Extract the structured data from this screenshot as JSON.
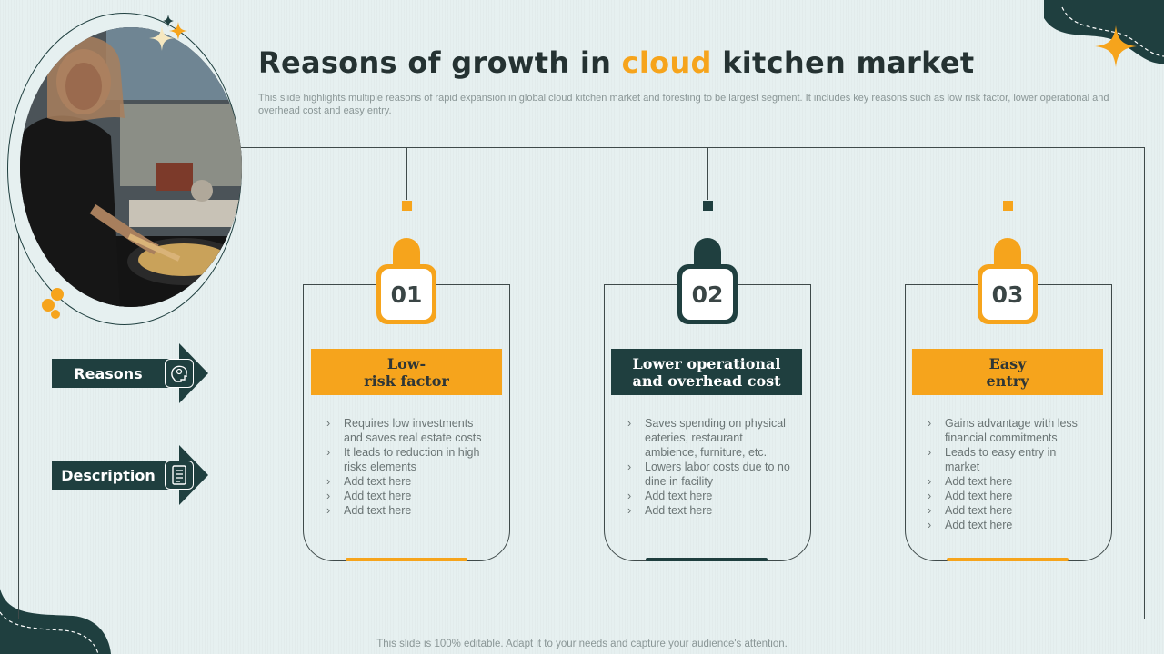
{
  "title": {
    "part1": "Reasons of growth in ",
    "accent": "cloud",
    "part2": " kitchen market"
  },
  "subtitle": "This slide highlights multiple reasons of rapid expansion in global cloud kitchen market and foresting to be largest segment. It includes key reasons such as low risk factor, lower operational and overhead cost and easy entry.",
  "labels": {
    "reasons": "Reasons",
    "description": "Description"
  },
  "cards": [
    {
      "number": "01",
      "heading": "Low-\nrisk factor",
      "bullets": [
        "Requires low investments and saves real estate costs",
        "It leads to reduction in high risks elements",
        "Add text here",
        "Add text here",
        "Add text here"
      ]
    },
    {
      "number": "02",
      "heading": "Lower operational\nand overhead cost",
      "bullets": [
        "Saves spending on physical eateries, restaurant ambience, furniture, etc.",
        "Lowers labor costs due to no dine in facility",
        "Add text here",
        "Add text here"
      ]
    },
    {
      "number": "03",
      "heading": "Easy\nentry",
      "bullets": [
        "Gains advantage  with less financial commitments",
        "Leads to easy entry in market",
        "Add text here",
        "Add text here",
        "Add text here",
        "Add text here"
      ]
    }
  ],
  "footer": "This slide is 100% editable. Adapt it to your needs and capture your audience's attention.",
  "colors": {
    "accent": "#f6a41c",
    "dark": "#1f3f3f",
    "background": "#e6f0f0"
  },
  "icons": {
    "reasons": "idea-head-icon",
    "description": "document-icon"
  }
}
